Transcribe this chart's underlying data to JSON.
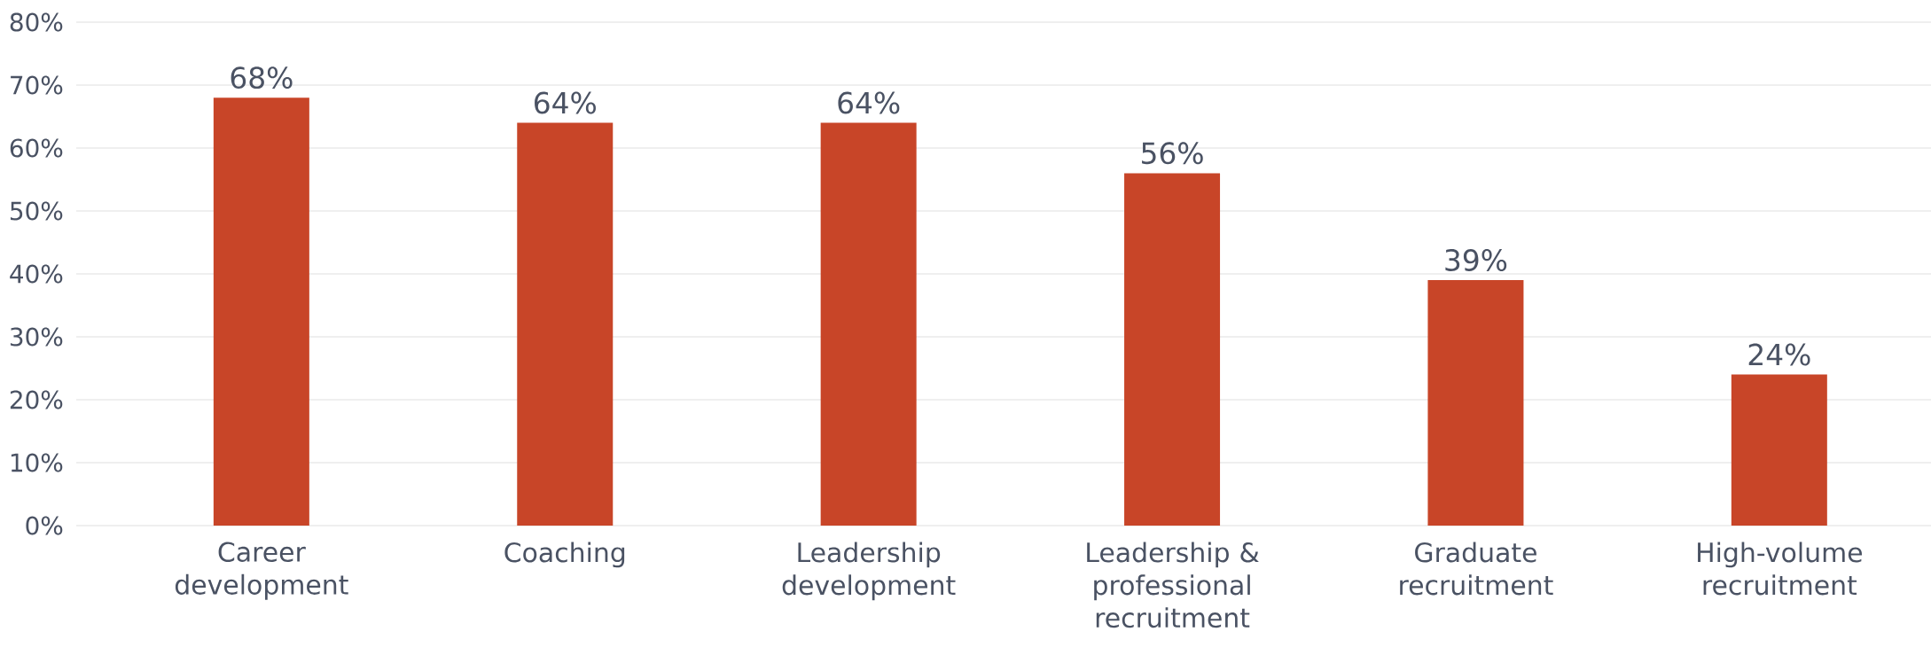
{
  "chart_data": {
    "type": "bar",
    "categories": [
      "Career development",
      "Coaching",
      "Leadership development",
      "Leadership & professional recruitment",
      "Graduate recruitment",
      "High-volume recruitment"
    ],
    "values": [
      68,
      64,
      64,
      56,
      39,
      24
    ],
    "value_labels": [
      "68%",
      "64%",
      "64%",
      "56%",
      "39%",
      "24%"
    ],
    "color": "#c84528",
    "ylim": [
      0,
      80
    ],
    "yticks": [
      {
        "value": 0,
        "label": "0%"
      },
      {
        "value": 10,
        "label": "10%"
      },
      {
        "value": 20,
        "label": "20%"
      },
      {
        "value": 30,
        "label": "30%"
      },
      {
        "value": 40,
        "label": "40%"
      },
      {
        "value": 50,
        "label": "50%"
      },
      {
        "value": 60,
        "label": "60%"
      },
      {
        "value": 70,
        "label": "70%"
      },
      {
        "value": 80,
        "label": "80%"
      }
    ],
    "grid": "y"
  }
}
